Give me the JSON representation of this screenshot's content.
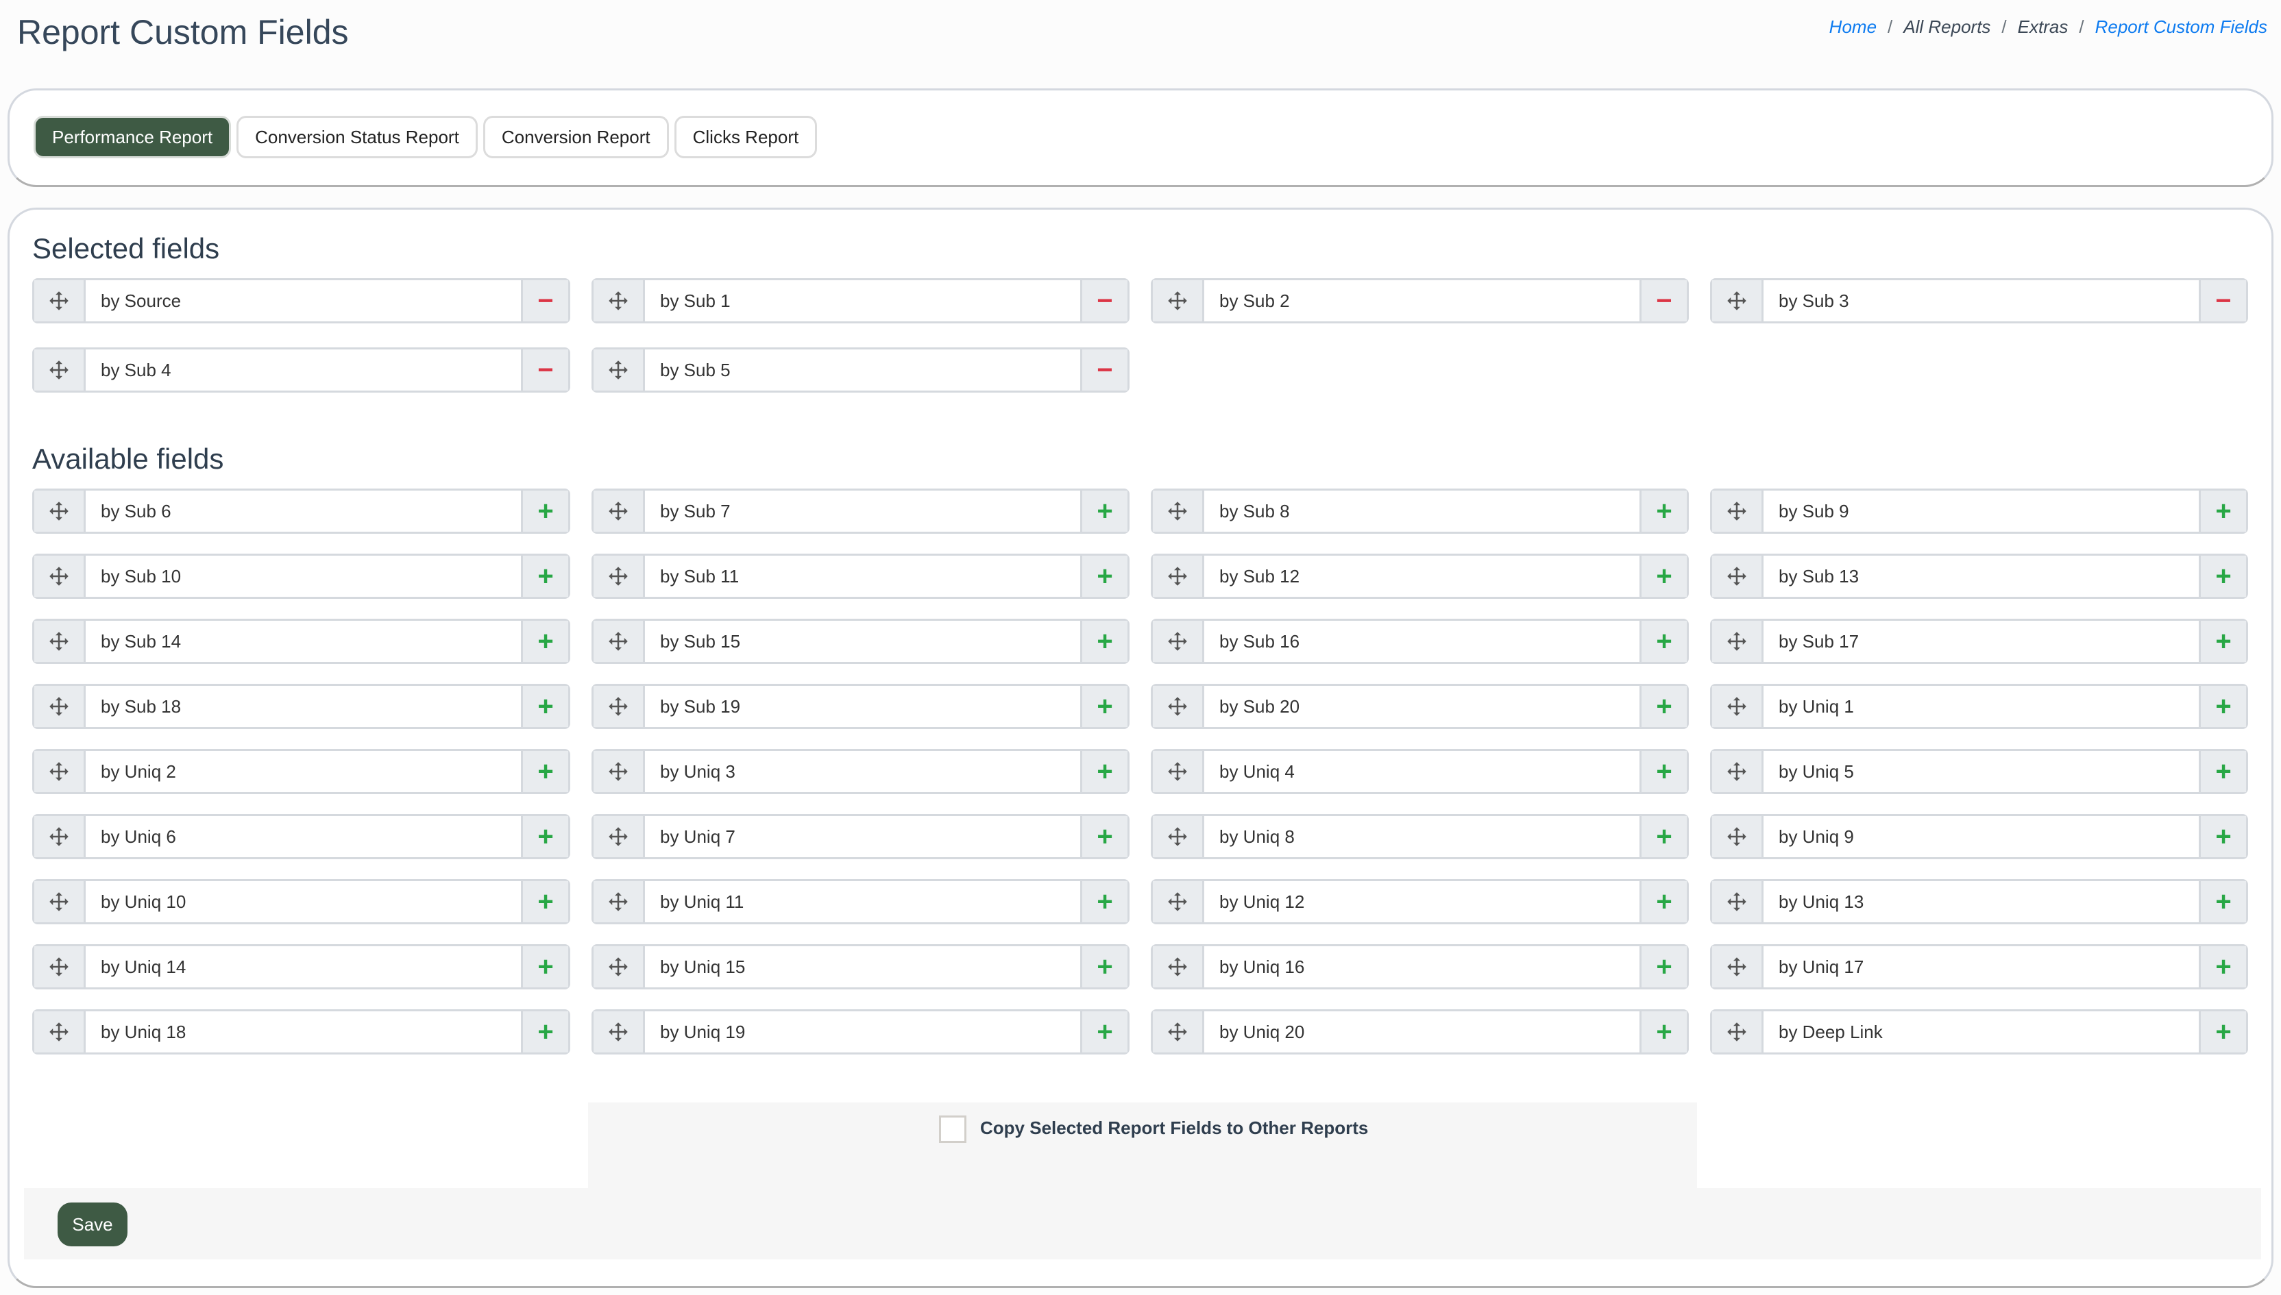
{
  "page_title": "Report Custom Fields",
  "breadcrumb": [
    {
      "label": "Home",
      "link": true
    },
    {
      "label": "All Reports",
      "link": false
    },
    {
      "label": "Extras",
      "link": false
    },
    {
      "label": "Report Custom Fields",
      "link": true
    }
  ],
  "tabs": [
    {
      "label": "Performance Report",
      "active": true
    },
    {
      "label": "Conversion Status Report",
      "active": false
    },
    {
      "label": "Conversion Report",
      "active": false
    },
    {
      "label": "Clicks Report",
      "active": false
    }
  ],
  "selected": {
    "heading": "Selected fields",
    "fields": [
      "by Source",
      "by Sub 1",
      "by Sub 2",
      "by Sub 3",
      "by Sub 4",
      "by Sub 5"
    ]
  },
  "available": {
    "heading": "Available fields",
    "fields": [
      "by Sub 6",
      "by Sub 7",
      "by Sub 8",
      "by Sub 9",
      "by Sub 10",
      "by Sub 11",
      "by Sub 12",
      "by Sub 13",
      "by Sub 14",
      "by Sub 15",
      "by Sub 16",
      "by Sub 17",
      "by Sub 18",
      "by Sub 19",
      "by Sub 20",
      "by Uniq 1",
      "by Uniq 2",
      "by Uniq 3",
      "by Uniq 4",
      "by Uniq 5",
      "by Uniq 6",
      "by Uniq 7",
      "by Uniq 8",
      "by Uniq 9",
      "by Uniq 10",
      "by Uniq 11",
      "by Uniq 12",
      "by Uniq 13",
      "by Uniq 14",
      "by Uniq 15",
      "by Uniq 16",
      "by Uniq 17",
      "by Uniq 18",
      "by Uniq 19",
      "by Uniq 20",
      "by Deep Link"
    ]
  },
  "copy": {
    "label": "Copy Selected Report Fields to Other Reports",
    "checked": false
  },
  "save_label": "Save",
  "icons": {
    "handle": "move-icon",
    "remove": "minus-icon",
    "add": "plus-icon"
  },
  "colors": {
    "accent": "#3e5a44",
    "remove": "#dc3545",
    "add": "#28a745",
    "link": "#0d7bf0"
  }
}
